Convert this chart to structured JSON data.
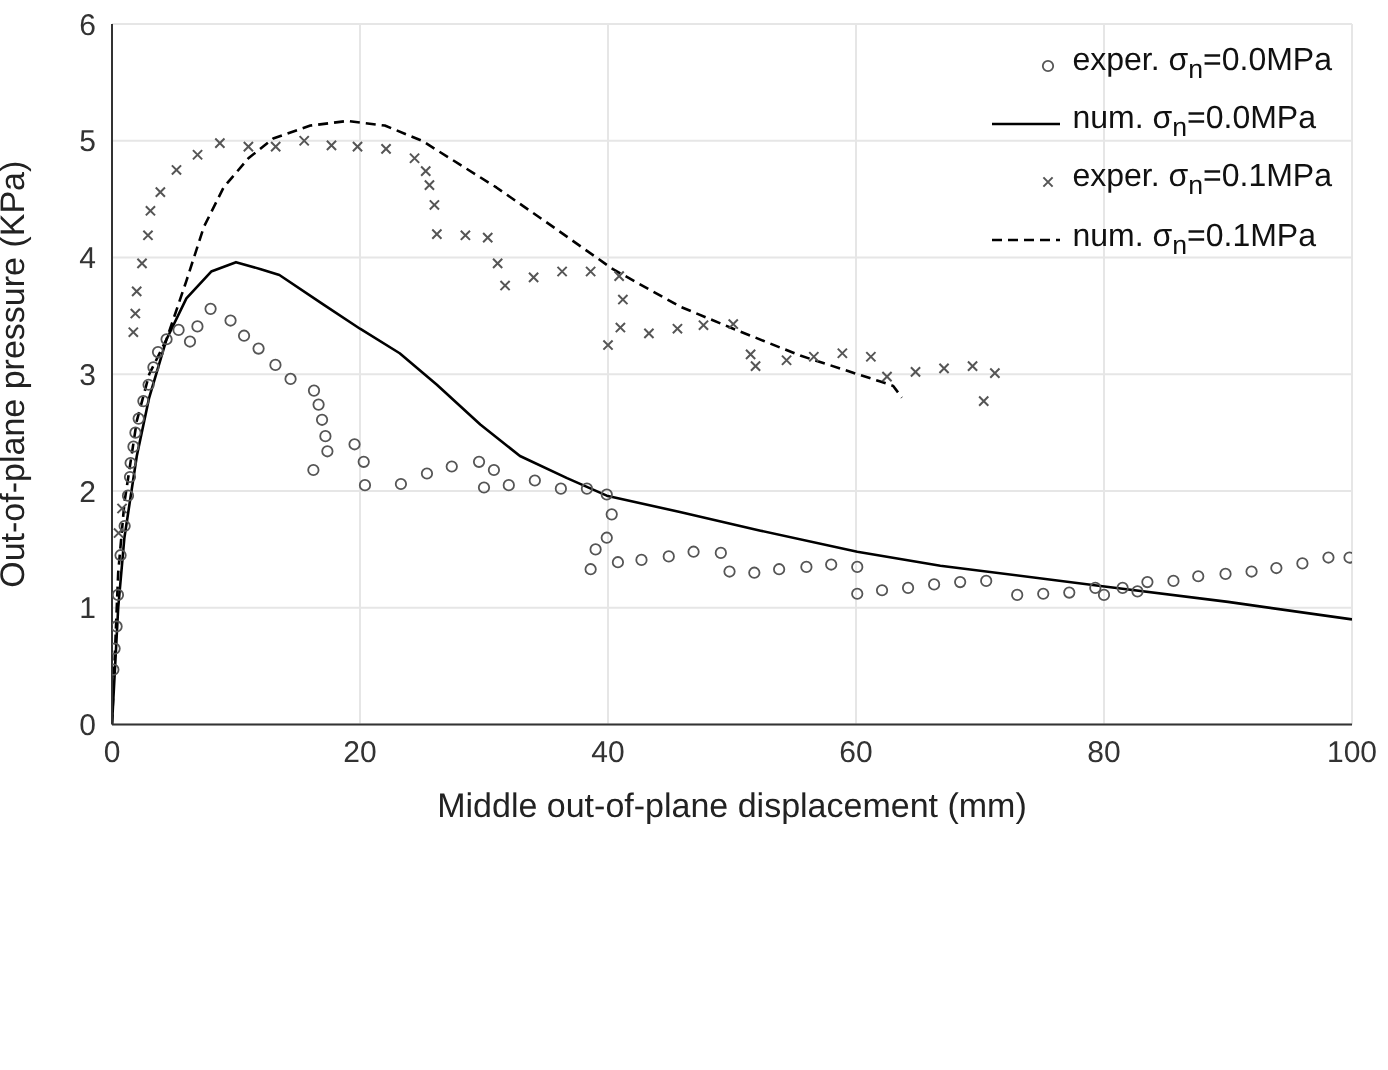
{
  "chart_data": {
    "type": "scatter",
    "xlabel": "Middle out-of-plane displacement (mm)",
    "ylabel": "Out-of-plane pressure (KPa)",
    "xlim": [
      0,
      100
    ],
    "xticks": [
      0,
      20,
      40,
      60,
      80,
      100
    ],
    "ylim": [
      0,
      6
    ],
    "yticks": [
      0,
      1,
      2,
      3,
      4,
      5,
      6
    ],
    "grid": true,
    "legend": "top right",
    "series": [
      {
        "name": "exper. σ$_{n}$=0.0MPa",
        "marker": "circle",
        "color": "#555555",
        "x": [
          0.11,
          0.21,
          0.37,
          0.48,
          0.69,
          1.02,
          1.29,
          1.45,
          1.5,
          1.73,
          1.89,
          2.15,
          2.53,
          2.95,
          3.34,
          3.71,
          4.4,
          5.37,
          6.29,
          6.89,
          7.95,
          9.56,
          10.65,
          11.82,
          13.18,
          14.4,
          16.29,
          16.66,
          16.94,
          17.21,
          17.37,
          16.24,
          19.56,
          20.3,
          20.4,
          23.3,
          25.4,
          27.4,
          29.6,
          30.8,
          30.0,
          32.0,
          34.1,
          36.2,
          38.3,
          39.9,
          40.3,
          39.9,
          39.0,
          38.6,
          40.8,
          42.7,
          44.9,
          46.9,
          49.1,
          49.8,
          51.8,
          53.8,
          56.0,
          58.0,
          60.1,
          60.1,
          62.1,
          64.2,
          66.3,
          68.4,
          70.5,
          73.0,
          75.1,
          77.2,
          79.3,
          80.0,
          81.5,
          82.7,
          83.5,
          85.6,
          87.6,
          89.8,
          91.9,
          93.9,
          96.0,
          98.1,
          99.8
        ],
        "values": [
          0.47,
          0.65,
          0.84,
          1.11,
          1.45,
          1.7,
          1.96,
          2.12,
          2.24,
          2.38,
          2.5,
          2.62,
          2.77,
          2.91,
          3.06,
          3.19,
          3.3,
          3.38,
          3.28,
          3.41,
          3.56,
          3.46,
          3.33,
          3.22,
          3.08,
          2.96,
          2.86,
          2.74,
          2.61,
          2.47,
          2.34,
          2.18,
          2.4,
          2.25,
          2.05,
          2.06,
          2.15,
          2.21,
          2.25,
          2.18,
          2.03,
          2.05,
          2.09,
          2.02,
          2.02,
          1.97,
          1.8,
          1.6,
          1.5,
          1.33,
          1.39,
          1.41,
          1.44,
          1.48,
          1.47,
          1.31,
          1.3,
          1.33,
          1.35,
          1.37,
          1.35,
          1.12,
          1.15,
          1.17,
          1.2,
          1.22,
          1.23,
          1.11,
          1.12,
          1.13,
          1.17,
          1.11,
          1.17,
          1.14,
          1.22,
          1.23,
          1.27,
          1.29,
          1.31,
          1.34,
          1.38,
          1.43,
          1.43
        ]
      },
      {
        "name": "num. σ$_{n}$=0.0MPa",
        "type": "line",
        "line_style": "solid",
        "color": "#000000",
        "x": [
          0,
          0.5,
          1,
          2,
          3,
          4.4,
          6,
          8,
          10,
          12,
          13.5,
          17,
          20,
          23.2,
          26.2,
          29.7,
          32.9,
          36.7,
          39.9,
          45.8,
          52.3,
          60.1,
          66.8,
          80.2,
          90,
          100
        ],
        "values": [
          0,
          1.0,
          1.6,
          2.3,
          2.8,
          3.3,
          3.65,
          3.88,
          3.96,
          3.9,
          3.85,
          3.6,
          3.39,
          3.18,
          2.91,
          2.57,
          2.3,
          2.11,
          1.96,
          1.82,
          1.66,
          1.48,
          1.36,
          1.18,
          1.05,
          0.9
        ]
      },
      {
        "name": "exper. σ$_{n}$=0.1MPa",
        "marker": "cross",
        "color": "#555555",
        "x": [
          0.53,
          0.81,
          1.72,
          1.88,
          1.99,
          2.42,
          2.9,
          3.1,
          3.9,
          5.2,
          6.9,
          8.7,
          11.0,
          13.2,
          15.5,
          17.7,
          19.8,
          22.1,
          24.4,
          25.3,
          25.6,
          26.0,
          26.2,
          28.5,
          30.3,
          31.1,
          31.7,
          34.0,
          36.3,
          38.6,
          40.9,
          41.2,
          41.0,
          40.0,
          43.3,
          45.6,
          47.7,
          50.1,
          51.5,
          51.9,
          54.4,
          56.6,
          58.9,
          61.2,
          62.5,
          64.8,
          67.1,
          69.4,
          71.2,
          70.3
        ],
        "values": [
          1.64,
          1.85,
          3.36,
          3.52,
          3.71,
          3.95,
          4.19,
          4.4,
          4.56,
          4.75,
          4.88,
          4.98,
          4.95,
          4.95,
          5.0,
          4.96,
          4.95,
          4.93,
          4.85,
          4.74,
          4.62,
          4.45,
          4.2,
          4.19,
          4.17,
          3.95,
          3.76,
          3.83,
          3.88,
          3.88,
          3.84,
          3.64,
          3.4,
          3.25,
          3.35,
          3.39,
          3.42,
          3.43,
          3.17,
          3.07,
          3.12,
          3.15,
          3.18,
          3.15,
          2.98,
          3.02,
          3.05,
          3.07,
          3.01,
          2.77
        ]
      },
      {
        "name": "num. σ$_{n}$=0.1MPa",
        "type": "line",
        "line_style": "dashed",
        "color": "#000000",
        "x": [
          0,
          0.5,
          1,
          2,
          3,
          4.4,
          6,
          7.4,
          9,
          11,
          13,
          16,
          19,
          22,
          25,
          28,
          31,
          35.6,
          40.4,
          45.8,
          50.1,
          55.5,
          61.9,
          63,
          63.7
        ],
        "values": [
          0,
          1.3,
          1.9,
          2.6,
          3.0,
          3.3,
          3.8,
          4.26,
          4.6,
          4.85,
          5.02,
          5.13,
          5.17,
          5.13,
          5.0,
          4.8,
          4.6,
          4.26,
          3.9,
          3.58,
          3.39,
          3.16,
          2.94,
          2.9,
          2.8
        ]
      }
    ]
  }
}
